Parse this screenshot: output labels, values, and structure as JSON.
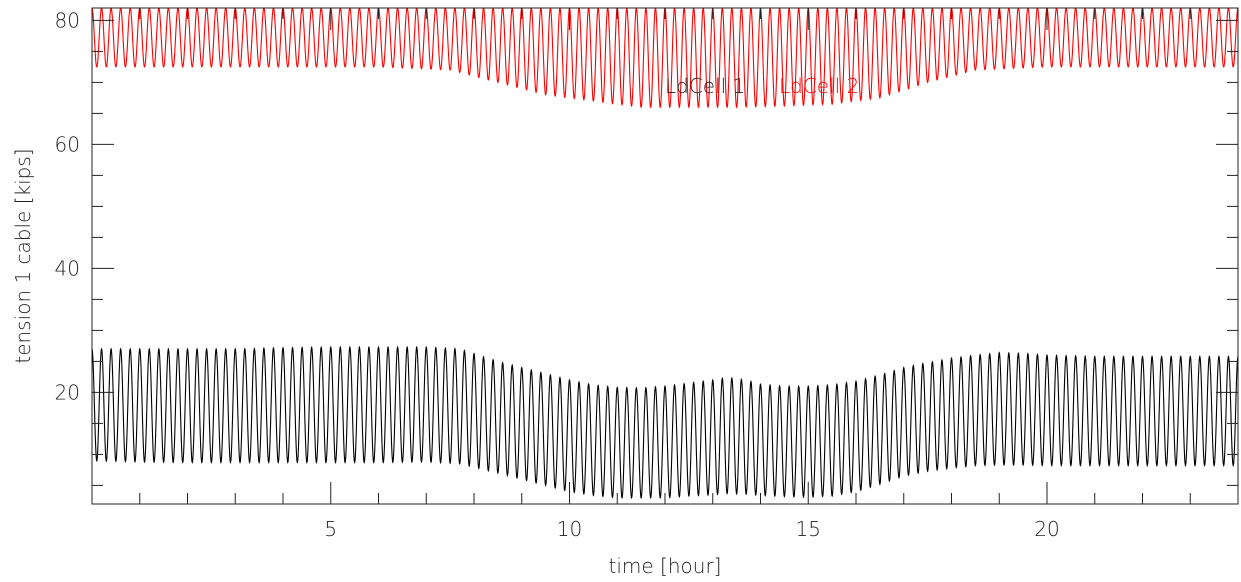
{
  "chart_data": {
    "type": "line",
    "title": "",
    "xlabel": "time [hour]",
    "ylabel": "tension 1 cable [kips]",
    "xlim": [
      0,
      24
    ],
    "ylim": [
      2,
      82
    ],
    "x_ticks": [
      5,
      10,
      15,
      20
    ],
    "y_ticks": [
      20,
      40,
      60,
      80
    ],
    "x_minor_step": 1,
    "y_minor_step": 5,
    "grid": false,
    "legend": {
      "placement": "top-center",
      "entries": [
        "LdCell 1",
        "LdCell 2"
      ]
    },
    "oscillation_period_hours": 0.2,
    "series": [
      {
        "name": "LdCell 1",
        "color": "#000000",
        "envelope_x": [
          0,
          1,
          2,
          3,
          4,
          5,
          6,
          7,
          7.7,
          8.5,
          9,
          9.5,
          10,
          10.5,
          11,
          11.5,
          12,
          12.5,
          13,
          13.3,
          13.7,
          14,
          14.5,
          15,
          15.5,
          16,
          16.5,
          17,
          17.5,
          18,
          18.5,
          19,
          19.5,
          20,
          21,
          22,
          23,
          24
        ],
        "upper": [
          27,
          27,
          27,
          27,
          27.2,
          27.3,
          27.3,
          27.3,
          27,
          25,
          24,
          23,
          22,
          21.2,
          20.8,
          20.7,
          21,
          21.5,
          22,
          22.4,
          22,
          21.3,
          21,
          21,
          21.2,
          21.8,
          22.8,
          24,
          24.8,
          25.5,
          26,
          26.4,
          26.3,
          26,
          25.8,
          25.8,
          25.8,
          25.8
        ],
        "lower": [
          9,
          8.8,
          8.7,
          8.7,
          8.7,
          8.7,
          8.7,
          8.8,
          8.5,
          7,
          6,
          5,
          4,
          3.4,
          3,
          3,
          3,
          3.3,
          3.5,
          3.7,
          3.6,
          3.4,
          3.2,
          3.1,
          3.3,
          4,
          5.2,
          6.5,
          7.3,
          7.8,
          8.2,
          8.3,
          8.3,
          8.2,
          8.2,
          8.2,
          8.2,
          8.2
        ]
      },
      {
        "name": "LdCell 2",
        "color": "#ff0000",
        "envelope_x": [
          0,
          2,
          4,
          6,
          7.5,
          8.5,
          9.5,
          10.5,
          11.5,
          12.5,
          13.5,
          14.5,
          15.5,
          16.5,
          17.5,
          18.5,
          20,
          22,
          24
        ],
        "upper": [
          82,
          82,
          82,
          82,
          82,
          82,
          82,
          82,
          82,
          82,
          82,
          82,
          82,
          82,
          82,
          82,
          82,
          82,
          82
        ],
        "lower": [
          72.5,
          72.5,
          72.5,
          72.5,
          72,
          70,
          68,
          67,
          66,
          66,
          66,
          66.2,
          66.5,
          67.5,
          70,
          72,
          72.5,
          72.5,
          72.5
        ]
      }
    ]
  }
}
